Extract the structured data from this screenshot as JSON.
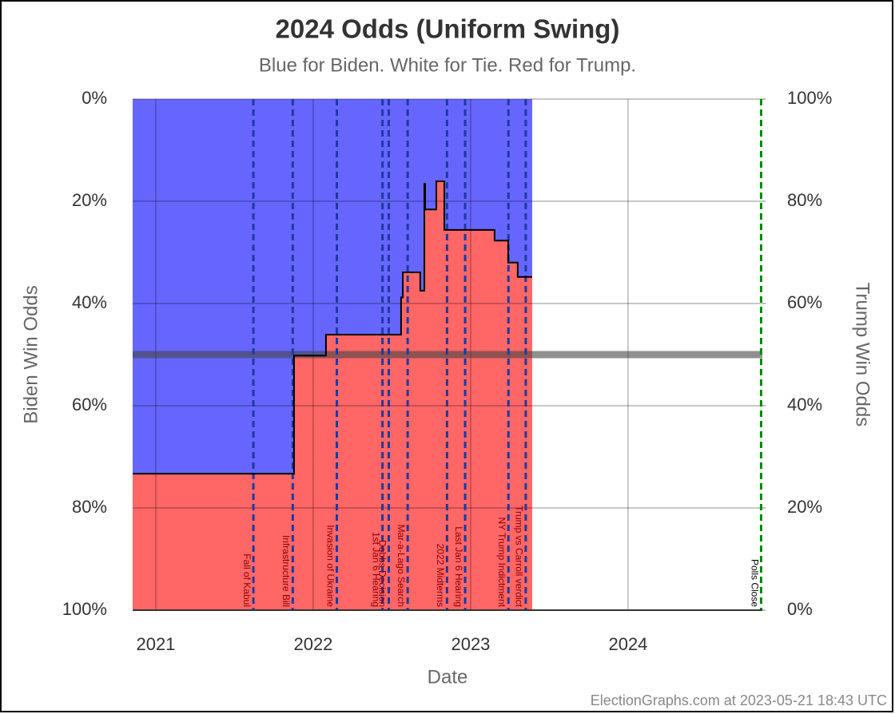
{
  "chart_data": {
    "type": "step-area",
    "title": "2024 Odds (Uniform Swing)",
    "subtitle": "Blue for Biden. White for Tie. Red for Trump.",
    "y_label": "Biden Win Odds",
    "y2_label": "Trump Win Odds",
    "x_label": "Date",
    "footer": "ElectionGraphs.com at 2023-05-21 18:43 UTC",
    "xlim": [
      2020.853,
      2024.853
    ],
    "xticks": [
      2021,
      2022,
      2023,
      2024
    ],
    "ylim": [
      100,
      0
    ],
    "yticks": [
      {
        "value": 0,
        "label": "0%"
      },
      {
        "value": 20,
        "label": "20%"
      },
      {
        "value": 40,
        "label": "40%"
      },
      {
        "value": 60,
        "label": "60%"
      },
      {
        "value": 80,
        "label": "80%"
      },
      {
        "value": 100,
        "label": "100%"
      }
    ],
    "y2lim": [
      0,
      100
    ],
    "y2ticks": [
      {
        "value": 100,
        "label": "100%"
      },
      {
        "value": 80,
        "label": "80%"
      },
      {
        "value": 60,
        "label": "60%"
      },
      {
        "value": 40,
        "label": "40%"
      },
      {
        "value": 20,
        "label": "20%"
      },
      {
        "value": 0,
        "label": "0%"
      }
    ],
    "grid": true,
    "upper_color": "#6666ff",
    "lower_color": "#ff6666",
    "line_color": "#000000",
    "reference_line": 50,
    "x": [
      2020.853,
      2021.878,
      2021.878,
      2022.081,
      2022.081,
      2022.558,
      2022.558,
      2022.569,
      2022.569,
      2022.68,
      2022.68,
      2022.706,
      2022.706,
      2022.711,
      2022.711,
      2022.782,
      2022.782,
      2022.833,
      2022.833,
      2023.152,
      2023.152,
      2023.239,
      2023.239,
      2023.299,
      2023.299,
      2023.391
    ],
    "values": [
      73.3,
      73.3,
      50.2,
      50.2,
      46.1,
      46.1,
      38.8,
      38.8,
      33.9,
      33.9,
      37.5,
      37.5,
      16.6,
      16.6,
      21.6,
      21.6,
      16.1,
      16.1,
      25.6,
      25.6,
      27.7,
      27.7,
      32.0,
      32.0,
      34.8,
      34.8
    ],
    "events": [
      {
        "x": 2021.62,
        "label": "Fall of Kabul",
        "color": "#1d3a9e",
        "label_color": "#8b0000"
      },
      {
        "x": 2021.87,
        "label": "Infrastructure Bill",
        "color": "#1d3a9e",
        "label_color": "#8b0000"
      },
      {
        "x": 2022.15,
        "label": "Invasion of Ukraine",
        "color": "#1d3a9e",
        "label_color": "#8b0000"
      },
      {
        "x": 2022.44,
        "label": "1st Jan 6 Hearing",
        "color": "#1d3a9e",
        "label_color": "#8b0000"
      },
      {
        "x": 2022.48,
        "label": "Dobbs Decision",
        "color": "#1d3a9e",
        "label_color": "#8b0000"
      },
      {
        "x": 2022.6,
        "label": "Mar-a-Lago Search",
        "color": "#1d3a9e",
        "label_color": "#8b0000"
      },
      {
        "x": 2022.85,
        "label": "2022 Midterms",
        "color": "#1d3a9e",
        "label_color": "#8b0000"
      },
      {
        "x": 2022.965,
        "label": "Last Jan 6 Hearing",
        "color": "#1d3a9e",
        "label_color": "#8b0000"
      },
      {
        "x": 2023.24,
        "label": "NY Trump Indictment",
        "color": "#1d3a9e",
        "label_color": "#8b0000"
      },
      {
        "x": 2023.35,
        "label": "Trump vs Carroll verdict",
        "color": "#1d3a9e",
        "label_color": "#8b0000"
      },
      {
        "x": 2024.845,
        "label": "Polls Close",
        "color": "#008800",
        "label_color": "#000000"
      }
    ]
  }
}
